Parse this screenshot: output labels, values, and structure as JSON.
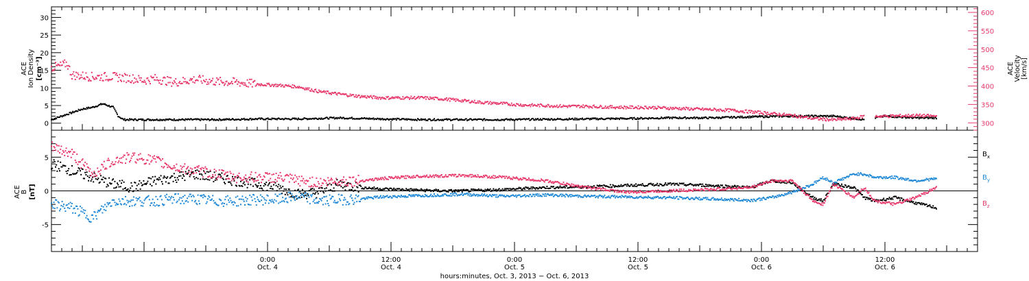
{
  "chart_data": [
    {
      "type": "scatter",
      "panel": "top",
      "left_axis_label": [
        "ACE",
        "Ion Density",
        "[cm⁻³]"
      ],
      "right_axis_label": [
        "ACE",
        "Velocity",
        "[km/s]"
      ],
      "left_ylim": [
        -2,
        33
      ],
      "right_ylim": [
        280,
        615
      ],
      "left_yticks": [
        0,
        5,
        10,
        15,
        20,
        25,
        30
      ],
      "right_yticks": [
        300,
        350,
        400,
        450,
        500,
        550,
        600
      ],
      "grid": false,
      "series": [
        {
          "axis": "left",
          "color": "#000000",
          "x": [
            0,
            2,
            3,
            4,
            5,
            6,
            6.5,
            7,
            8,
            10,
            12,
            16,
            20,
            24,
            28,
            32,
            36,
            40,
            44,
            48,
            52,
            56,
            60,
            64,
            68,
            72,
            76,
            79,
            81,
            84,
            86
          ],
          "y": [
            1,
            3,
            4,
            4.5,
            5.5,
            4.5,
            2,
            1,
            1,
            1,
            1,
            1,
            1.2,
            1.2,
            1.5,
            1.2,
            1,
            1,
            1,
            1.1,
            1.2,
            1.3,
            1.5,
            1.5,
            1.8,
            2,
            2,
            1,
            2,
            1.5,
            1.5
          ]
        },
        {
          "axis": "right",
          "color": "#e8386a",
          "x": [
            0,
            1,
            1.5,
            2,
            4,
            6,
            8,
            9,
            10,
            12,
            14,
            16,
            18,
            20,
            22,
            24,
            26,
            28,
            30,
            32,
            34,
            36,
            38,
            40,
            42,
            44,
            46,
            48,
            50,
            52,
            54,
            56,
            58,
            60,
            62,
            64,
            66,
            68,
            70,
            72,
            74,
            76,
            78,
            79,
            81,
            84,
            86
          ],
          "y": [
            450,
            455,
            462,
            430,
            425,
            425,
            420,
            415,
            420,
            410,
            418,
            412,
            410,
            405,
            402,
            398,
            385,
            378,
            372,
            368,
            368,
            368,
            365,
            360,
            355,
            352,
            348,
            347,
            345,
            345,
            343,
            342,
            342,
            340,
            338,
            336,
            334,
            330,
            325,
            320,
            312,
            308,
            312,
            318,
            318,
            320,
            318
          ]
        }
      ]
    },
    {
      "type": "scatter",
      "panel": "bottom",
      "left_axis_label": [
        "ACE",
        "B",
        "[nT]"
      ],
      "ylim": [
        -9,
        9
      ],
      "yticks": [
        -5,
        0,
        5
      ],
      "grid": false,
      "legend_position": "right",
      "series": [
        {
          "name": "Bx",
          "color": "#000000",
          "x": [
            0,
            2,
            4,
            6,
            8,
            10,
            12,
            14,
            16,
            18,
            20,
            22,
            24,
            26,
            28,
            30,
            32,
            34,
            36,
            38,
            40,
            44,
            48,
            52,
            56,
            60,
            64,
            68,
            70,
            72,
            74,
            75,
            76,
            78,
            79,
            80,
            82,
            84,
            86
          ],
          "y": [
            4,
            3,
            2,
            1,
            0.5,
            1.5,
            2,
            2.5,
            2,
            1.5,
            1,
            0.5,
            -0.5,
            -0.2,
            1,
            0.5,
            0.3,
            0.2,
            0.1,
            0,
            0,
            0.2,
            0.5,
            0.6,
            0.8,
            1,
            0.8,
            0.5,
            1.5,
            1.2,
            -1,
            -1.5,
            1,
            0.5,
            -1,
            -1.5,
            -1,
            -1.8,
            -2.5
          ]
        },
        {
          "name": "By",
          "color": "#1e88d6",
          "x": [
            0,
            2,
            4,
            6,
            8,
            10,
            12,
            14,
            16,
            18,
            20,
            22,
            24,
            26,
            28,
            30,
            32,
            34,
            36,
            38,
            40,
            44,
            48,
            52,
            56,
            60,
            64,
            68,
            70,
            72,
            74,
            75,
            76,
            78,
            79,
            80,
            82,
            84,
            86
          ],
          "y": [
            -2,
            -2.5,
            -4,
            -1.5,
            -1.5,
            -1.5,
            -1.2,
            -1.2,
            -1.5,
            -1.5,
            -1.3,
            -1.3,
            -0.8,
            -1.5,
            -1.3,
            -1.2,
            -0.9,
            -0.8,
            -0.7,
            -0.6,
            -0.5,
            -0.8,
            -0.6,
            -0.8,
            -0.9,
            -1,
            -1.2,
            -1.4,
            -1,
            -0.2,
            1,
            2,
            1.2,
            2.5,
            2.5,
            2,
            2,
            1.5,
            1.8
          ]
        },
        {
          "name": "Bz",
          "color": "#e8386a",
          "x": [
            0,
            2,
            4,
            6,
            8,
            10,
            12,
            14,
            16,
            18,
            20,
            22,
            24,
            26,
            28,
            30,
            32,
            34,
            36,
            38,
            40,
            44,
            48,
            52,
            56,
            60,
            64,
            68,
            70,
            72,
            74,
            75,
            76,
            78,
            79,
            80,
            82,
            84,
            86
          ],
          "y": [
            6.5,
            5.5,
            2.5,
            4.5,
            5,
            4.5,
            3.5,
            3,
            2.5,
            2,
            2,
            2,
            1.5,
            1.2,
            1.5,
            1.5,
            1.8,
            2,
            2.2,
            2.2,
            2.3,
            2,
            1.5,
            0.5,
            -0.2,
            0,
            0.2,
            0.5,
            1.5,
            1.5,
            -1.5,
            -2,
            1,
            -1,
            0.5,
            -1.5,
            -2,
            -1,
            0.5
          ]
        }
      ]
    }
  ],
  "axis": {
    "x_hours_range": [
      -21,
      69
    ],
    "xticks": [
      {
        "h": 0,
        "time": "0:00",
        "date": "Oct. 4"
      },
      {
        "h": 12,
        "time": "12:00",
        "date": "Oct. 4"
      },
      {
        "h": 24,
        "time": "0:00",
        "date": "Oct. 5"
      },
      {
        "h": 36,
        "time": "12:00",
        "date": "Oct. 5"
      },
      {
        "h": 48,
        "time": "0:00",
        "date": "Oct. 6"
      },
      {
        "h": 60,
        "time": "12:00",
        "date": "Oct. 6"
      }
    ],
    "xlabel": "hours:minutes, Oct.  3, 2013 − Oct.  6, 2013"
  },
  "colors": {
    "black": "#000000",
    "pink": "#e8386a",
    "blue": "#1e88d6"
  }
}
